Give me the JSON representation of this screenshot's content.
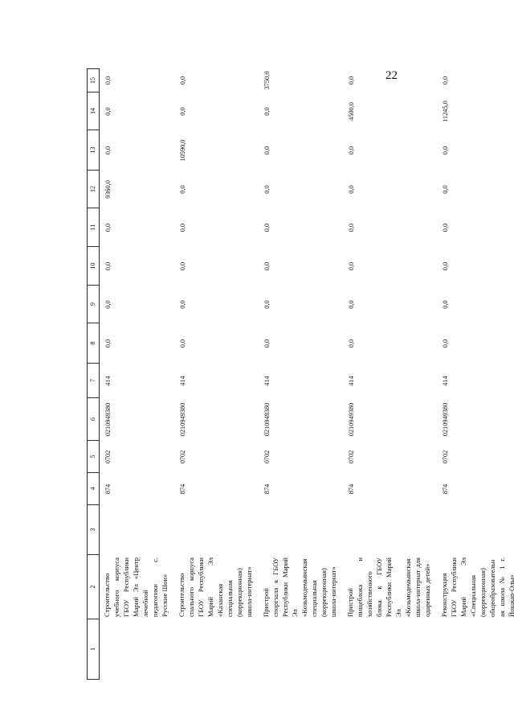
{
  "page_number": "22",
  "columns": [
    "1",
    "2",
    "3",
    "4",
    "5",
    "6",
    "7",
    "8",
    "9",
    "10",
    "11",
    "12",
    "13",
    "14",
    "15"
  ],
  "rows": [
    {
      "c2": "Строительство учебного корпуса ГБОУ Республики Марий Эл «Центр лечебной педагогики с. Русские Шои»",
      "c3": "",
      "c4": "874",
      "c5": "0702",
      "c6": "0210949380",
      "c7": "414",
      "c8": "0,0",
      "c9": "0,0",
      "c10": "0,0",
      "c11": "0,0",
      "c12": "9360,0",
      "c13": "0,0",
      "c14": "0,0",
      "c15": "0,0"
    },
    {
      "c2": "Строительство спального корпуса ГБОУ Республики Марий Эл «Казанская специальная (коррекционная) школа-интернат»",
      "c3": "",
      "c4": "874",
      "c5": "0702",
      "c6": "0210949380",
      "c7": "414",
      "c8": "0,0",
      "c9": "0,0",
      "c10": "0,0",
      "c11": "0,0",
      "c12": "0,0",
      "c13": "10590,0",
      "c14": "0,0",
      "c15": "0,0"
    },
    {
      "c2": "Пристрой спортзала к ГБОУ Республики Марий Эл «Козьмодемьянская специальная (коррекционная) школа-интернат»",
      "c3": "",
      "c4": "874",
      "c5": "0702",
      "c6": "0210949380",
      "c7": "414",
      "c8": "0,0",
      "c9": "0,0",
      "c10": "0,0",
      "c11": "0,0",
      "c12": "0,0",
      "c13": "0,0",
      "c14": "0,0",
      "c15": "3750,0"
    },
    {
      "c2": "Пристрой пищеблока и хозяйственного блока к ГБОУ Республики Марий Эл «Козьмодемьянская школа-интернат для одаренных детей»",
      "c3": "",
      "c4": "874",
      "c5": "0702",
      "c6": "0210949380",
      "c7": "414",
      "c8": "0,0",
      "c9": "0,0",
      "c10": "0,0",
      "c11": "0,0",
      "c12": "0,0",
      "c13": "0,0",
      "c14": "4500,0",
      "c15": "0,0"
    },
    {
      "c2": "Реконструкция ГБОУ Республики Марий Эл «Специальная (коррекционная) общеобразовательная школа № 1 г. Йошкар-Олы»",
      "c3": "",
      "c4": "874",
      "c5": "0702",
      "c6": "0210949380",
      "c7": "414",
      "c8": "0,0",
      "c9": "0,0",
      "c10": "0,0",
      "c11": "0,0",
      "c12": "0,0",
      "c13": "0,0",
      "c14": "11245,0",
      "c15": "0,0"
    }
  ]
}
